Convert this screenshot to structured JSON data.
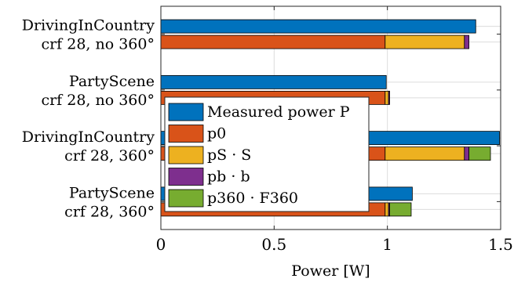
{
  "chart_data": {
    "type": "bar",
    "orientation": "horizontal",
    "xlabel": "Power [W]",
    "xlim": [
      0,
      1.5
    ],
    "xticks": [
      0,
      0.5,
      1,
      1.5
    ],
    "xtick_labels": [
      "0",
      "0.5",
      "1",
      "1.5"
    ],
    "grid": true,
    "legend_placement": "center-left",
    "groups": [
      {
        "label_line1": "DrivingInCountry",
        "label_line2": "crf 28, no 360°",
        "measured": 1.39,
        "model": [
          0.99,
          0.35,
          0.02,
          0.0
        ]
      },
      {
        "label_line1": "PartyScene",
        "label_line2": "crf 28, no 360°",
        "measured": 0.995,
        "model": [
          0.99,
          0.015,
          0.005,
          0.0
        ]
      },
      {
        "label_line1": "DrivingInCountry",
        "label_line2": "crf 28, 360°",
        "measured": 1.495,
        "model": [
          0.99,
          0.35,
          0.02,
          0.095
        ]
      },
      {
        "label_line1": "PartyScene",
        "label_line2": "crf 28, 360°",
        "measured": 1.11,
        "model": [
          0.99,
          0.015,
          0.005,
          0.095
        ]
      }
    ],
    "series": [
      {
        "name": "Measured power P",
        "color": "#0072BD"
      },
      {
        "name": "p0",
        "color": "#D95319"
      },
      {
        "name": "pS · S",
        "color": "#EDB120"
      },
      {
        "name": "pb · b",
        "color": "#7E2F8E"
      },
      {
        "name": "p360 · F360",
        "color": "#77AC30"
      }
    ]
  }
}
